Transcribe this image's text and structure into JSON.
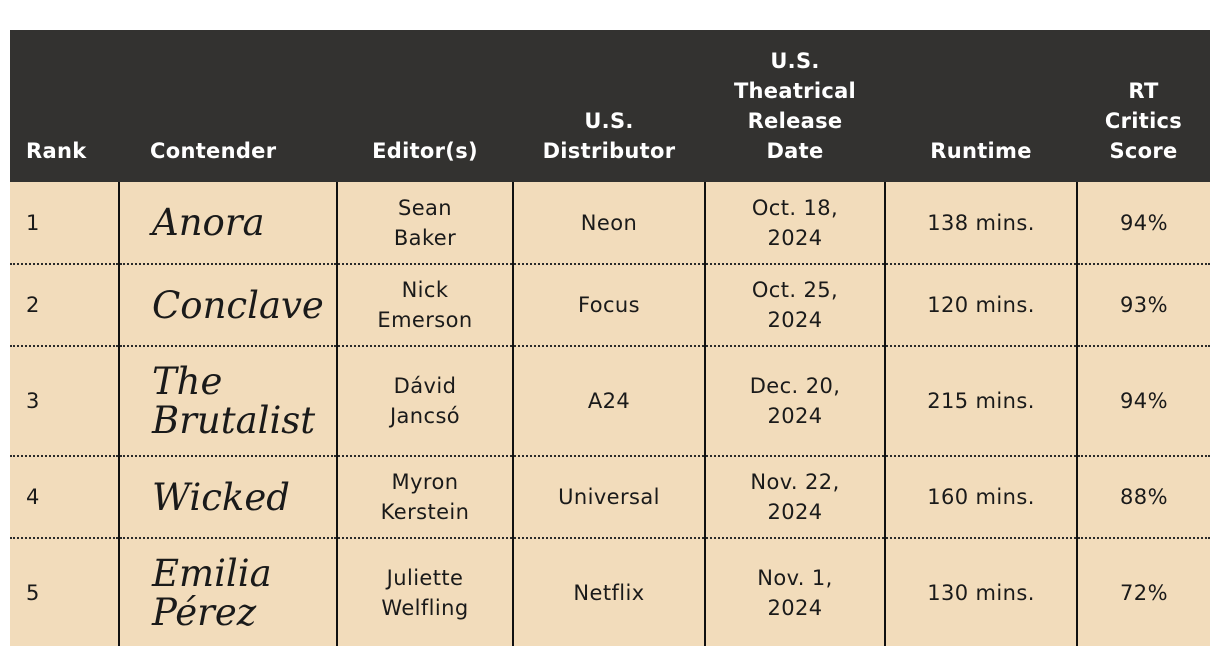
{
  "table": {
    "headers": {
      "rank": "Rank",
      "contender": "Contender",
      "editors": "Editor(s)",
      "distributor": "U.S.\nDistributor",
      "release_date": "U.S.\nTheatrical\nRelease\nDate",
      "runtime": "Runtime",
      "rt_score": "RT\nCritics\nScore"
    },
    "rows": [
      {
        "rank": "1",
        "contender": "Anora",
        "editors": "Sean\nBaker",
        "distributor": "Neon",
        "release_date": "Oct. 18,\n2024",
        "runtime": "138 mins.",
        "rt_score": "94%"
      },
      {
        "rank": "2",
        "contender": "Conclave",
        "editors": "Nick\nEmerson",
        "distributor": "Focus",
        "release_date": "Oct. 25,\n2024",
        "runtime": "120 mins.",
        "rt_score": "93%"
      },
      {
        "rank": "3",
        "contender": "The\nBrutalist",
        "editors": "Dávid\nJancsó",
        "distributor": "A24",
        "release_date": "Dec. 20,\n2024",
        "runtime": "215 mins.",
        "rt_score": "94%"
      },
      {
        "rank": "4",
        "contender": "Wicked",
        "editors": "Myron\nKerstein",
        "distributor": "Universal",
        "release_date": "Nov. 22,\n2024",
        "runtime": "160 mins.",
        "rt_score": "88%"
      },
      {
        "rank": "5",
        "contender": "Emilia\nPérez",
        "editors": "Juliette\nWelfling",
        "distributor": "Netflix",
        "release_date": "Nov. 1,\n2024",
        "runtime": "130 mins.",
        "rt_score": "72%"
      }
    ]
  },
  "colors": {
    "header_background": "#333230",
    "header_text": "#ffffff",
    "row_background": "#f2dcbb",
    "body_text": "#1a1a1a"
  }
}
